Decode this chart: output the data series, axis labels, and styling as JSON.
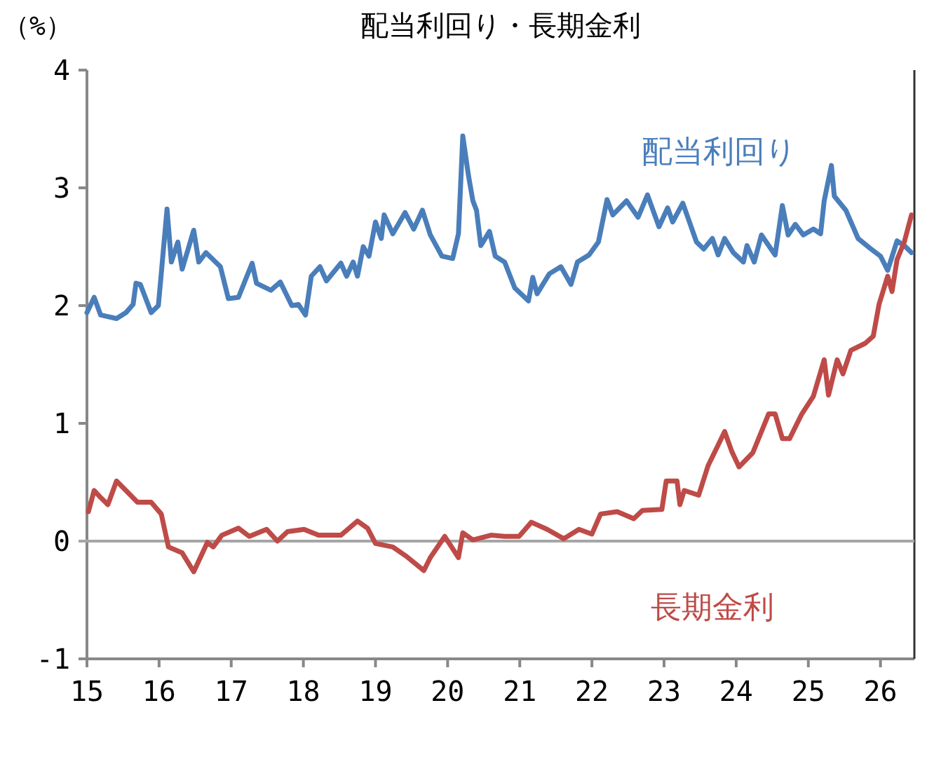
{
  "chart_data": {
    "type": "line",
    "title": "配当利回り・長期金利",
    "ylabel": "（%）",
    "xlim": [
      15,
      26.47
    ],
    "xticks": [
      15,
      16,
      17,
      18,
      19,
      20,
      21,
      22,
      23,
      24,
      25,
      26
    ],
    "ylim": [
      -1,
      4
    ],
    "yticks": [
      -1,
      0,
      1,
      2,
      3,
      4
    ],
    "ref_lines": [
      {
        "axis": "y",
        "value": 0,
        "color": "#a6a6a6"
      }
    ],
    "legend": false,
    "series": [
      {
        "name": "配当利回り",
        "color": "#4a7ebb",
        "x": [
          15.0,
          15.1,
          15.19,
          15.41,
          15.54,
          15.64,
          15.68,
          15.74,
          15.89,
          15.99,
          16.03,
          16.11,
          16.17,
          16.26,
          16.32,
          16.48,
          16.55,
          16.65,
          16.85,
          16.96,
          17.1,
          17.29,
          17.35,
          17.55,
          17.68,
          17.84,
          17.93,
          18.03,
          18.11,
          18.23,
          18.32,
          18.52,
          18.6,
          18.69,
          18.75,
          18.83,
          18.91,
          19.0,
          19.08,
          19.12,
          19.24,
          19.41,
          19.53,
          19.65,
          19.76,
          19.92,
          20.07,
          20.15,
          20.21,
          20.29,
          20.35,
          20.4,
          20.46,
          20.58,
          20.66,
          20.79,
          20.93,
          21.12,
          21.18,
          21.24,
          21.41,
          21.57,
          21.71,
          21.8,
          21.96,
          22.09,
          22.21,
          22.29,
          22.48,
          22.64,
          22.77,
          22.93,
          23.05,
          23.12,
          23.26,
          23.45,
          23.55,
          23.67,
          23.75,
          23.84,
          23.96,
          24.1,
          24.15,
          24.25,
          24.35,
          24.54,
          24.64,
          24.72,
          24.82,
          24.93,
          25.07,
          25.17,
          25.22,
          25.32,
          25.36,
          25.52,
          25.69,
          25.85,
          26.0,
          26.1,
          26.23,
          26.33,
          26.43
        ],
        "values": [
          1.94,
          2.07,
          1.92,
          1.89,
          1.94,
          2.01,
          2.19,
          2.18,
          1.94,
          2.0,
          2.27,
          2.82,
          2.37,
          2.54,
          2.31,
          2.64,
          2.37,
          2.45,
          2.33,
          2.06,
          2.07,
          2.36,
          2.19,
          2.13,
          2.2,
          2.0,
          2.01,
          1.92,
          2.25,
          2.33,
          2.21,
          2.36,
          2.25,
          2.37,
          2.25,
          2.5,
          2.42,
          2.71,
          2.57,
          2.77,
          2.61,
          2.79,
          2.65,
          2.81,
          2.6,
          2.42,
          2.4,
          2.61,
          3.44,
          3.1,
          2.89,
          2.81,
          2.51,
          2.63,
          2.42,
          2.37,
          2.15,
          2.04,
          2.24,
          2.1,
          2.27,
          2.33,
          2.18,
          2.37,
          2.43,
          2.54,
          2.9,
          2.77,
          2.89,
          2.75,
          2.94,
          2.67,
          2.83,
          2.71,
          2.87,
          2.54,
          2.48,
          2.57,
          2.43,
          2.57,
          2.45,
          2.37,
          2.51,
          2.37,
          2.6,
          2.43,
          2.85,
          2.6,
          2.69,
          2.6,
          2.65,
          2.61,
          2.89,
          3.19,
          2.93,
          2.81,
          2.57,
          2.49,
          2.42,
          2.3,
          2.55,
          2.51,
          2.45
        ]
      },
      {
        "name": "長期金利",
        "color": "#be4b48",
        "x": [
          15.02,
          15.1,
          15.19,
          15.29,
          15.41,
          15.54,
          15.7,
          15.89,
          16.03,
          16.13,
          16.32,
          16.48,
          16.67,
          16.75,
          16.87,
          17.1,
          17.25,
          17.49,
          17.64,
          17.78,
          18.01,
          18.21,
          18.52,
          18.75,
          18.89,
          19.0,
          19.24,
          19.43,
          19.67,
          19.76,
          19.96,
          20.15,
          20.21,
          20.35,
          20.6,
          20.79,
          20.99,
          21.16,
          21.38,
          21.61,
          21.82,
          22.0,
          22.12,
          22.35,
          22.58,
          22.7,
          22.97,
          23.03,
          23.18,
          23.22,
          23.28,
          23.48,
          23.61,
          23.84,
          23.94,
          24.04,
          24.23,
          24.45,
          24.54,
          24.64,
          24.74,
          24.91,
          25.07,
          25.22,
          25.28,
          25.4,
          25.48,
          25.59,
          25.79,
          25.9,
          25.98,
          26.1,
          26.16,
          26.23,
          26.33,
          26.43
        ],
        "values": [
          0.25,
          0.43,
          0.37,
          0.31,
          0.51,
          0.43,
          0.33,
          0.33,
          0.23,
          -0.05,
          -0.1,
          -0.26,
          -0.01,
          -0.05,
          0.05,
          0.11,
          0.04,
          0.1,
          0.0,
          0.08,
          0.1,
          0.05,
          0.05,
          0.17,
          0.11,
          -0.02,
          -0.05,
          -0.13,
          -0.25,
          -0.14,
          0.04,
          -0.14,
          0.07,
          0.01,
          0.05,
          0.04,
          0.04,
          0.16,
          0.1,
          0.02,
          0.1,
          0.06,
          0.23,
          0.25,
          0.19,
          0.26,
          0.27,
          0.51,
          0.51,
          0.31,
          0.43,
          0.39,
          0.64,
          0.93,
          0.76,
          0.63,
          0.75,
          1.08,
          1.08,
          0.87,
          0.87,
          1.08,
          1.23,
          1.54,
          1.24,
          1.54,
          1.42,
          1.62,
          1.68,
          1.74,
          2.01,
          2.25,
          2.12,
          2.39,
          2.54,
          2.77
        ]
      }
    ]
  }
}
